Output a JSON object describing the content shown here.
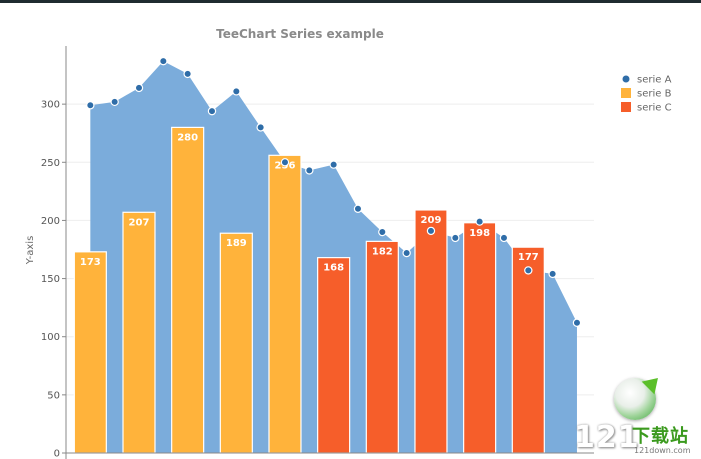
{
  "chart_data": {
    "type": "bar",
    "title": "TeeChart Series example",
    "ylabel": "Y-axis",
    "xlabel": "",
    "ylim": [
      0,
      350
    ],
    "yticks": [
      0,
      50,
      100,
      150,
      200,
      250,
      300
    ],
    "grid": true,
    "legend_position": "top-right",
    "series": [
      {
        "name": "serie A",
        "type": "area",
        "color": "#7bacdb",
        "marker_color": "#2f6da8",
        "x": [
          0.5,
          1.0,
          1.5,
          2.0,
          2.5,
          3.0,
          3.5,
          4.0,
          4.5,
          5.0,
          5.5,
          6.0,
          6.5,
          7.0,
          7.5,
          8.0,
          8.5,
          9.0,
          9.5,
          10.0,
          10.5
        ],
        "values": [
          299,
          302,
          314,
          337,
          326,
          294,
          311,
          280,
          250,
          243,
          248,
          210,
          190,
          172,
          191,
          185,
          199,
          185,
          157,
          154,
          112
        ]
      },
      {
        "name": "serie B",
        "type": "bar",
        "color": "#ffb33b",
        "x": [
          0.5,
          1.5,
          2.5,
          3.5,
          4.5
        ],
        "values": [
          173,
          207,
          280,
          189,
          256
        ],
        "labels": [
          "173",
          "207",
          "280",
          "189",
          "256"
        ]
      },
      {
        "name": "serie C",
        "type": "bar",
        "color": "#f65e2a",
        "x": [
          5.5,
          6.5,
          7.5,
          8.5,
          9.5
        ],
        "values": [
          168,
          182,
          209,
          198,
          177
        ],
        "labels": [
          "168",
          "182",
          "209",
          "198",
          "177"
        ]
      }
    ]
  },
  "watermark": {
    "number": "121",
    "chinese": "下载站",
    "url": "121down.com"
  }
}
